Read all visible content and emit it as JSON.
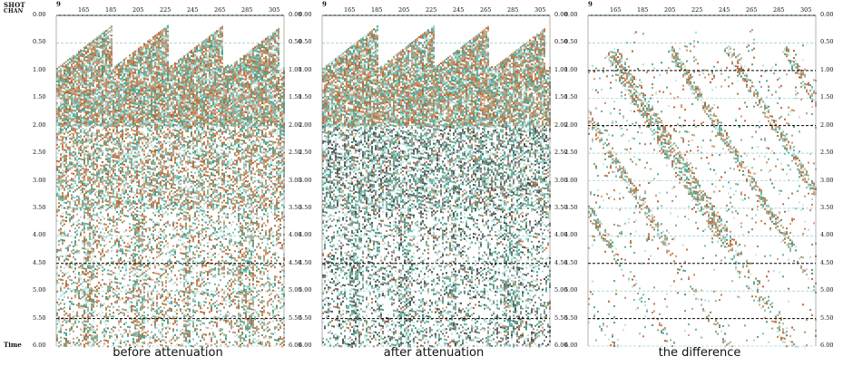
{
  "header": {
    "shot_label": "SHOT",
    "chan_label": "CHAN"
  },
  "shot_value": "9",
  "time_axis_label": "Time",
  "time_ticks": [
    "0.00",
    "0.50",
    "1.00",
    "1.50",
    "2.00",
    "2.50",
    "3.00",
    "3.50",
    "4.00",
    "4.50",
    "5.00",
    "5.50",
    "6.00"
  ],
  "chan_ticks": [
    "165",
    "185",
    "205",
    "225",
    "245",
    "265",
    "285",
    "305"
  ],
  "panels": [
    {
      "caption": "before attenuation"
    },
    {
      "caption": "after attenuation"
    },
    {
      "caption": "the difference"
    }
  ],
  "colors": {
    "positive": "#b3622a",
    "negative": "#3f9a82",
    "light": "#a9d9d3",
    "dashed_line": "#000000"
  }
}
